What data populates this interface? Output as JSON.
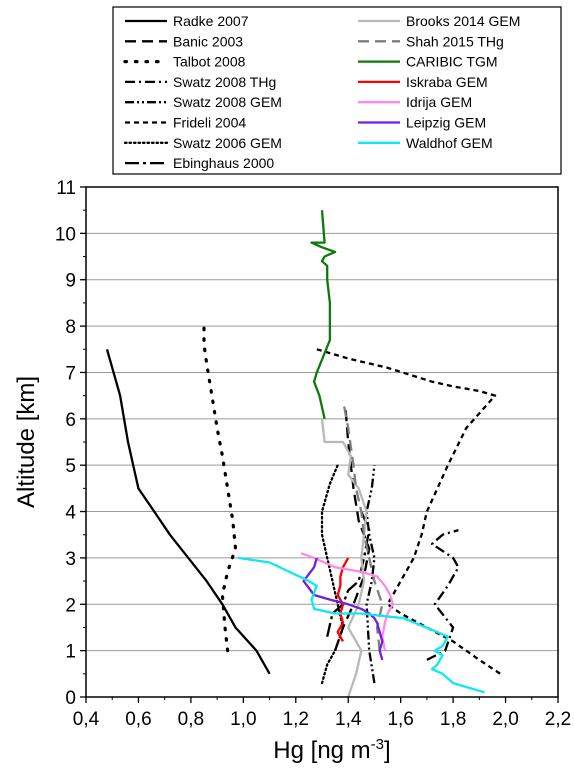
{
  "chart_data": {
    "type": "line",
    "xlabel": "Hg [ng m",
    "xlabel_sup": "-3",
    "xlabel_end": "]",
    "ylabel": "Altitude [km]",
    "xlim": [
      0.4,
      2.2
    ],
    "ylim": [
      0,
      11
    ],
    "xticks": [
      "0,4",
      "0,6",
      "0,8",
      "1,0",
      "1,2",
      "1,4",
      "1,6",
      "1,8",
      "2,0",
      "2,2"
    ],
    "yticks": [
      "0",
      "1",
      "2",
      "3",
      "4",
      "5",
      "6",
      "7",
      "8",
      "9",
      "10",
      "11"
    ],
    "grid": "horizontal",
    "legend_position": "top",
    "series": [
      {
        "name": "Radke 2007",
        "color": "#000000",
        "style": "solid",
        "x": [
          1.1,
          1.05,
          0.97,
          0.92,
          0.86,
          0.79,
          0.72,
          0.66,
          0.6,
          0.56,
          0.53,
          0.48
        ],
        "y": [
          0.5,
          1.0,
          1.5,
          2.0,
          2.5,
          3.0,
          3.5,
          4.0,
          4.5,
          5.5,
          6.5,
          7.5
        ]
      },
      {
        "name": "Banic 2003",
        "color": "#000000",
        "style": "dash",
        "x": [
          1.35,
          1.38,
          1.42,
          1.46,
          1.48,
          1.44,
          1.42,
          1.4,
          1.39
        ],
        "y": [
          1.0,
          1.5,
          2.0,
          2.6,
          3.2,
          3.8,
          4.5,
          5.5,
          6.2
        ]
      },
      {
        "name": "Talbot 2008",
        "color": "#000000",
        "style": "dot",
        "x": [
          0.94,
          0.93,
          0.92,
          0.94,
          0.97,
          0.96,
          0.94,
          0.92,
          0.9,
          0.88,
          0.86,
          0.85,
          0.85
        ],
        "y": [
          1.0,
          1.5,
          2.2,
          2.7,
          3.2,
          3.8,
          4.5,
          5.2,
          5.8,
          6.5,
          7.2,
          7.6,
          8.0
        ]
      },
      {
        "name": "Swatz 2008 THg",
        "color": "#000000",
        "style": "dashdot",
        "x": [
          1.7,
          1.77,
          1.8,
          1.73,
          1.78,
          1.82,
          1.8,
          1.72,
          1.76,
          1.82
        ],
        "y": [
          0.8,
          1.0,
          1.5,
          2.0,
          2.4,
          2.8,
          3.0,
          3.3,
          3.5,
          3.6
        ]
      },
      {
        "name": "Swatz 2008 GEM",
        "color": "#000000",
        "style": "dashdotdot",
        "x": [
          1.5,
          1.48,
          1.47,
          1.49,
          1.5,
          1.48,
          1.47,
          1.49,
          1.5
        ],
        "y": [
          0.3,
          1.0,
          2.0,
          2.5,
          3.0,
          3.5,
          4.0,
          4.5,
          5.0
        ]
      },
      {
        "name": "Frideli 2004",
        "color": "#000000",
        "style": "shortdash",
        "x": [
          1.28,
          1.4,
          1.55,
          1.72,
          1.8,
          1.9,
          1.96,
          1.85,
          1.78,
          1.74,
          1.7,
          1.68,
          1.65,
          1.6,
          1.55,
          1.6,
          1.7,
          1.8,
          1.9,
          1.98
        ],
        "y": [
          7.5,
          7.3,
          7.1,
          6.8,
          6.7,
          6.6,
          6.5,
          5.8,
          5.0,
          4.5,
          4.0,
          3.5,
          3.0,
          2.5,
          2.0,
          1.8,
          1.5,
          1.2,
          0.8,
          0.5
        ]
      },
      {
        "name": "Swatz 2006 GEM",
        "color": "#000000",
        "style": "densedot",
        "x": [
          1.3,
          1.32,
          1.35,
          1.38,
          1.36,
          1.34,
          1.32,
          1.3,
          1.3,
          1.33,
          1.36
        ],
        "y": [
          0.3,
          0.7,
          1.0,
          1.5,
          2.0,
          2.5,
          3.0,
          3.5,
          4.0,
          4.6,
          5.0
        ]
      },
      {
        "name": "Ebinghaus 2000",
        "color": "#000000",
        "style": "dashdotlong",
        "x": [
          1.32,
          1.34,
          1.38,
          1.4,
          1.44,
          1.46,
          1.48,
          1.45
        ],
        "y": [
          1.3,
          1.8,
          2.0,
          2.3,
          2.5,
          3.0,
          3.6,
          4.0
        ]
      },
      {
        "name": "Brooks 2014 GEM",
        "color": "#b8b8b8",
        "style": "solid",
        "x": [
          1.4,
          1.43,
          1.45,
          1.4,
          1.44,
          1.46,
          1.45,
          1.46,
          1.47,
          1.44,
          1.4,
          1.41,
          1.38,
          1.31,
          1.3
        ],
        "y": [
          0.0,
          0.5,
          1.0,
          1.5,
          2.0,
          2.5,
          3.0,
          3.5,
          4.0,
          4.5,
          4.8,
          5.2,
          5.5,
          5.5,
          6.0
        ]
      },
      {
        "name": "Shah 2015 THg",
        "color": "#7f7f7f",
        "style": "dash",
        "x": [
          1.52,
          1.51,
          1.53,
          1.5,
          1.48,
          1.46,
          1.45,
          1.43,
          1.42,
          1.4,
          1.38
        ],
        "y": [
          1.0,
          1.5,
          2.0,
          2.5,
          3.0,
          3.5,
          4.0,
          4.5,
          5.0,
          5.8,
          6.4
        ]
      },
      {
        "name": "CARIBIC TGM",
        "color": "#0b7a0b",
        "style": "solid",
        "x": [
          1.31,
          1.29,
          1.27,
          1.28,
          1.33,
          1.33,
          1.32,
          1.32,
          1.3,
          1.31,
          1.35,
          1.3,
          1.26,
          1.31,
          1.3
        ],
        "y": [
          6.0,
          6.5,
          6.8,
          7.0,
          7.7,
          8.5,
          9.0,
          9.3,
          9.4,
          9.5,
          9.6,
          9.7,
          9.8,
          9.8,
          10.5
        ]
      },
      {
        "name": "Iskraba GEM",
        "color": "#ff0000",
        "style": "solid",
        "x": [
          1.38,
          1.36,
          1.38,
          1.37,
          1.38,
          1.36,
          1.37,
          1.37,
          1.38,
          1.39,
          1.4
        ],
        "y": [
          1.2,
          1.4,
          1.6,
          1.8,
          2.0,
          2.2,
          2.4,
          2.6,
          2.8,
          2.9,
          3.0
        ]
      },
      {
        "name": "Idrija GEM",
        "color": "#ff88e8",
        "style": "solid",
        "x": [
          1.54,
          1.53,
          1.54,
          1.55,
          1.57,
          1.56,
          1.54,
          1.51,
          1.45,
          1.35,
          1.27,
          1.22
        ],
        "y": [
          1.0,
          1.3,
          1.6,
          1.8,
          2.0,
          2.2,
          2.4,
          2.6,
          2.7,
          2.8,
          3.0,
          3.1
        ]
      },
      {
        "name": "Leipzig GEM",
        "color": "#7020e0",
        "style": "solid",
        "x": [
          1.53,
          1.52,
          1.53,
          1.52,
          1.51,
          1.5,
          1.48,
          1.45,
          1.4,
          1.33,
          1.27,
          1.23,
          1.27,
          1.28
        ],
        "y": [
          0.8,
          1.0,
          1.2,
          1.4,
          1.6,
          1.7,
          1.8,
          1.9,
          2.0,
          2.1,
          2.2,
          2.5,
          2.8,
          3.0
        ]
      },
      {
        "name": "Waldhof GEM",
        "color": "#10e8f0",
        "style": "solid",
        "x": [
          1.92,
          1.8,
          1.76,
          1.72,
          1.74,
          1.76,
          1.73,
          1.76,
          1.78,
          1.74,
          1.61,
          1.45,
          1.35,
          1.27,
          1.26,
          1.28,
          1.25,
          1.1,
          0.98
        ],
        "y": [
          0.1,
          0.3,
          0.5,
          0.6,
          0.7,
          0.9,
          1.0,
          1.1,
          1.3,
          1.4,
          1.7,
          1.8,
          1.8,
          1.9,
          2.1,
          2.4,
          2.5,
          2.9,
          3.0
        ]
      }
    ]
  }
}
